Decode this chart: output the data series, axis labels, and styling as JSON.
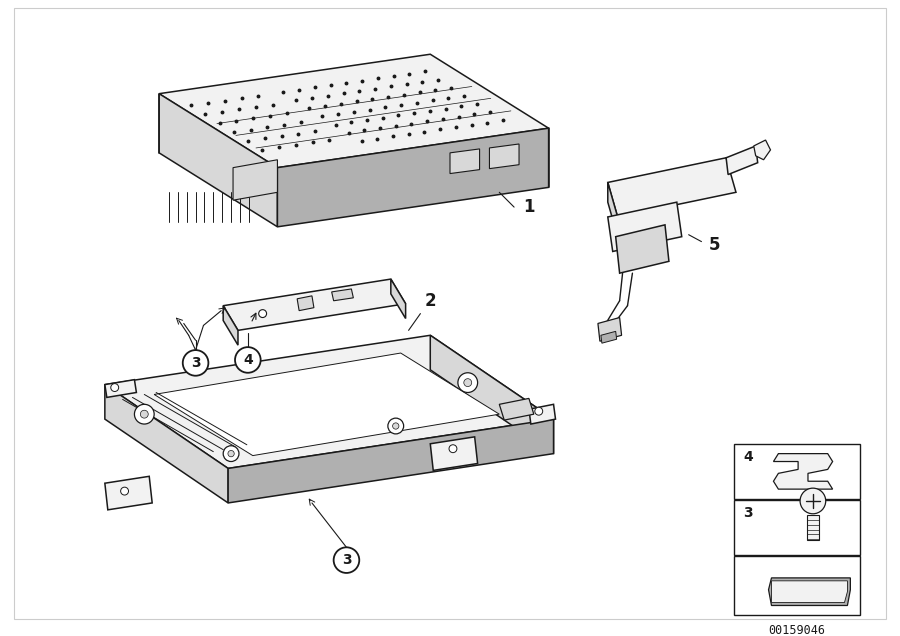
{
  "bg_color": "#ffffff",
  "line_color": "#1a1a1a",
  "diagram_id": "00159046",
  "fig_width": 9.0,
  "fig_height": 6.36,
  "dpi": 100,
  "lw_main": 1.1,
  "lw_thin": 0.7,
  "lw_thick": 1.4,
  "gray_light": "#f2f2f2",
  "gray_mid": "#d8d8d8",
  "gray_dark": "#b0b0b0",
  "white": "#ffffff",
  "dark": "#333333"
}
